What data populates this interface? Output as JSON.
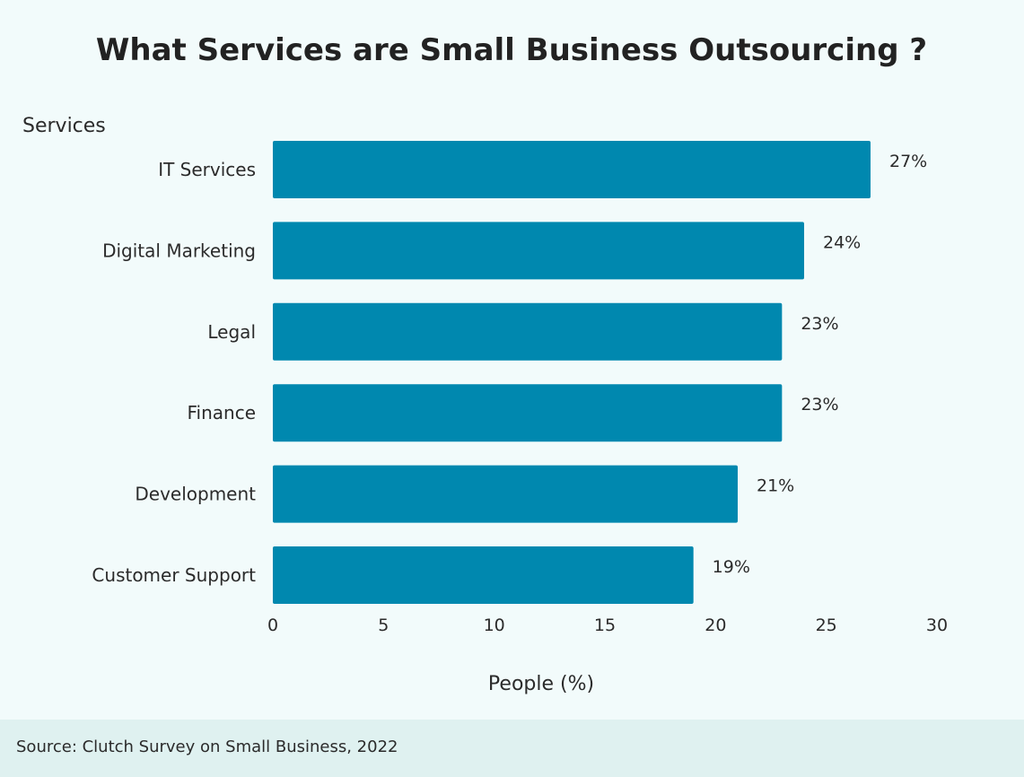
{
  "chart_data": {
    "type": "bar",
    "orientation": "horizontal",
    "title": "What Services are Small Business Outsourcing ?",
    "ylabel": "Services",
    "xlabel": "People (%)",
    "categories": [
      "IT Services",
      "Digital Marketing",
      "Legal",
      "Finance",
      "Development",
      "Customer Support"
    ],
    "values": [
      27,
      24,
      23,
      23,
      21,
      19
    ],
    "data_labels": [
      "27%",
      "24%",
      "23%",
      "23%",
      "21%",
      "19%"
    ],
    "xlim": [
      0,
      30
    ],
    "xticks": [
      0,
      5,
      10,
      15,
      20,
      25,
      30
    ],
    "grid": false,
    "bar_color": "#0088af"
  },
  "footer": {
    "source": "Source: Clutch Survey on Small Business, 2022"
  }
}
